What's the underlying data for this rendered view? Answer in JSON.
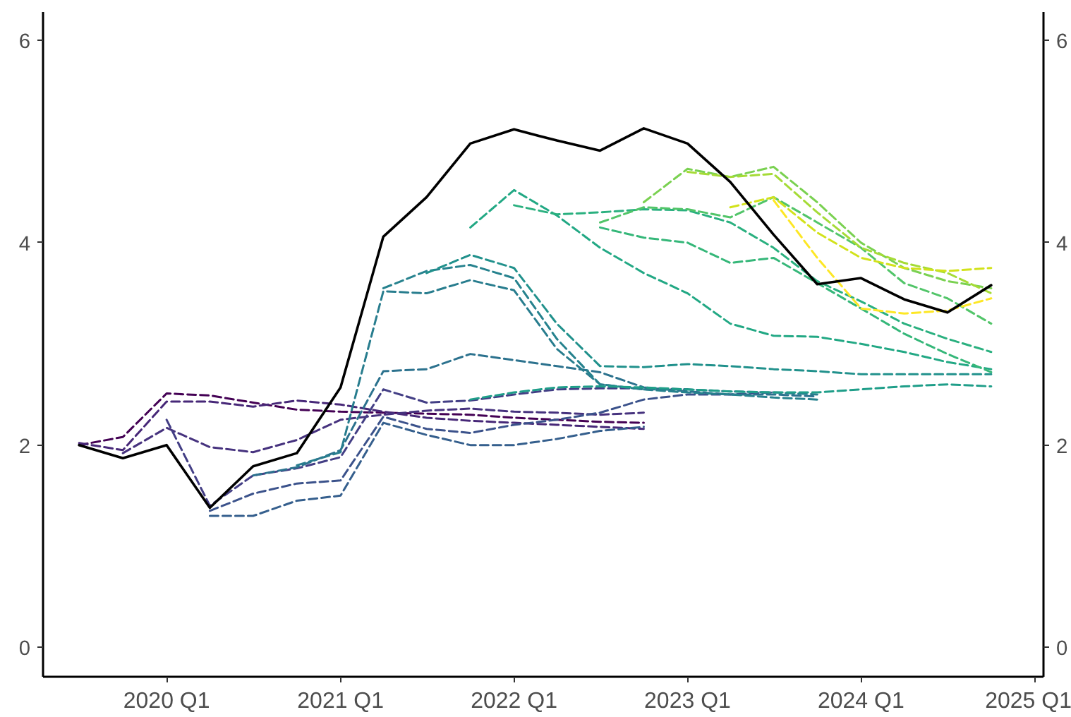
{
  "chart_data": {
    "type": "line",
    "xlim": [
      "2019-04-16",
      "2025-01-19"
    ],
    "ylim": [
      -0.29,
      6.28
    ],
    "y2lim": [
      -0.29,
      6.28
    ],
    "xticks": [
      {
        "value": "2020-01",
        "label": "2020 Q1"
      },
      {
        "value": "2021-01",
        "label": "2021 Q1"
      },
      {
        "value": "2022-01",
        "label": "2022 Q1"
      },
      {
        "value": "2023-01",
        "label": "2023 Q1"
      },
      {
        "value": "2024-01",
        "label": "2024 Q1"
      },
      {
        "value": "2025-01",
        "label": "2025 Q1"
      }
    ],
    "yticks": [
      0,
      2,
      4,
      6
    ],
    "y2ticks": [
      0,
      2,
      4,
      6
    ],
    "grid": false,
    "marker": "none",
    "series": [
      {
        "color": "#440154",
        "line_style": "dashed",
        "x": [
          "2019-07",
          "2019-10",
          "2020-01",
          "2020-04",
          "2020-07",
          "2020-10",
          "2021-01",
          "2021-04",
          "2021-07",
          "2021-10",
          "2022-01",
          "2022-04",
          "2022-07",
          "2022-10"
        ],
        "values": [
          2.0,
          2.08,
          2.51,
          2.49,
          2.42,
          2.35,
          2.33,
          2.32,
          2.31,
          2.3,
          2.27,
          2.25,
          2.23,
          2.22
        ]
      },
      {
        "color": "#472878",
        "line_style": "dashed",
        "x": [
          "2019-07",
          "2019-10",
          "2020-01",
          "2020-04",
          "2020-07",
          "2020-10",
          "2021-01",
          "2021-04",
          "2021-07",
          "2021-10",
          "2022-01",
          "2022-04",
          "2022-07",
          "2022-10"
        ],
        "values": [
          2.02,
          1.95,
          2.43,
          2.43,
          2.38,
          2.44,
          2.4,
          2.33,
          2.27,
          2.24,
          2.22,
          2.2,
          2.18,
          2.16
        ]
      },
      {
        "color": "#46327e",
        "line_style": "dashed",
        "x": [
          "2019-10",
          "2020-01",
          "2020-04",
          "2020-07",
          "2020-10",
          "2021-01",
          "2021-04",
          "2021-07",
          "2021-10",
          "2022-01",
          "2022-04",
          "2022-07",
          "2022-10"
        ],
        "values": [
          1.92,
          2.17,
          1.98,
          1.93,
          2.05,
          2.25,
          2.3,
          2.34,
          2.36,
          2.33,
          2.32,
          2.3,
          2.32
        ]
      },
      {
        "color": "#433e85",
        "line_style": "dashed",
        "x": [
          "2020-01",
          "2020-04",
          "2020-07",
          "2020-10",
          "2021-01",
          "2021-04",
          "2021-07",
          "2021-10",
          "2022-01",
          "2022-04",
          "2022-07",
          "2022-10",
          "2023-01"
        ],
        "values": [
          2.25,
          1.4,
          1.7,
          1.77,
          1.88,
          2.55,
          2.42,
          2.44,
          2.5,
          2.55,
          2.56,
          2.56,
          2.55
        ]
      },
      {
        "color": "#3b528b",
        "line_style": "dashed",
        "x": [
          "2020-04",
          "2020-07",
          "2020-10",
          "2021-01",
          "2021-04",
          "2021-07",
          "2021-10",
          "2022-01",
          "2022-04",
          "2022-07",
          "2022-10",
          "2023-01",
          "2023-04",
          "2023-07"
        ],
        "values": [
          1.35,
          1.52,
          1.62,
          1.65,
          2.28,
          2.16,
          2.12,
          2.2,
          2.25,
          2.32,
          2.45,
          2.5,
          2.5,
          2.52
        ]
      },
      {
        "color": "#355f8d",
        "line_style": "dashed",
        "x": [
          "2020-04",
          "2020-07",
          "2020-10",
          "2021-01",
          "2021-04",
          "2021-07",
          "2021-10",
          "2022-01",
          "2022-04",
          "2022-07",
          "2022-10"
        ],
        "values": [
          1.3,
          1.3,
          1.45,
          1.5,
          2.22,
          2.1,
          2.0,
          2.0,
          2.06,
          2.14,
          2.18
        ]
      },
      {
        "color": "#2c728e",
        "line_style": "dashed",
        "x": [
          "2020-07",
          "2020-10",
          "2021-01",
          "2021-04",
          "2021-07",
          "2021-10",
          "2022-01",
          "2022-04",
          "2022-07",
          "2022-10",
          "2023-01",
          "2023-04",
          "2023-07",
          "2023-10"
        ],
        "values": [
          1.7,
          1.78,
          1.95,
          2.73,
          2.75,
          2.9,
          2.84,
          2.78,
          2.72,
          2.57,
          2.53,
          2.5,
          2.5,
          2.48
        ]
      },
      {
        "color": "#287d8e",
        "line_style": "dashed",
        "x": [
          "2020-10",
          "2021-01",
          "2021-04",
          "2021-07",
          "2021-10",
          "2022-01",
          "2022-04",
          "2022-07",
          "2022-10",
          "2023-01",
          "2023-04",
          "2023-07",
          "2023-10"
        ],
        "values": [
          1.8,
          1.93,
          3.52,
          3.5,
          3.63,
          3.53,
          2.95,
          2.6,
          2.55,
          2.55,
          2.53,
          2.52,
          2.5
        ]
      },
      {
        "color": "#26828e",
        "line_style": "dashed",
        "x": [
          "2021-04",
          "2021-07",
          "2021-10",
          "2022-01",
          "2022-04",
          "2022-07",
          "2022-10",
          "2023-01",
          "2023-04",
          "2023-07",
          "2023-10"
        ],
        "values": [
          3.55,
          3.72,
          3.78,
          3.65,
          3.05,
          2.6,
          2.55,
          2.52,
          2.5,
          2.47,
          2.45
        ]
      },
      {
        "color": "#21918c",
        "line_style": "dashed",
        "x": [
          "2021-07",
          "2021-10",
          "2022-01",
          "2022-04",
          "2022-07",
          "2022-10",
          "2023-01",
          "2023-04",
          "2023-07",
          "2023-10",
          "2024-01",
          "2024-04",
          "2024-07",
          "2024-10"
        ],
        "values": [
          3.7,
          3.88,
          3.75,
          3.2,
          2.78,
          2.77,
          2.8,
          2.78,
          2.75,
          2.73,
          2.7,
          2.7,
          2.7,
          2.7
        ]
      },
      {
        "color": "#1f9e89",
        "line_style": "dashed",
        "x": [
          "2021-10",
          "2022-01",
          "2022-04",
          "2022-07",
          "2022-10",
          "2023-01",
          "2023-04",
          "2023-07",
          "2023-10",
          "2024-01",
          "2024-04",
          "2024-07",
          "2024-10"
        ],
        "values": [
          2.45,
          2.52,
          2.57,
          2.58,
          2.57,
          2.55,
          2.53,
          2.52,
          2.52,
          2.55,
          2.58,
          2.6,
          2.58
        ]
      },
      {
        "color": "#22a884",
        "line_style": "dashed",
        "x": [
          "2021-10",
          "2022-01",
          "2022-04",
          "2022-07",
          "2022-10",
          "2023-01",
          "2023-04",
          "2023-07",
          "2023-10",
          "2024-01",
          "2024-04",
          "2024-07",
          "2024-10"
        ],
        "values": [
          4.15,
          4.52,
          4.27,
          3.95,
          3.7,
          3.5,
          3.2,
          3.08,
          3.07,
          3.0,
          2.92,
          2.82,
          2.75
        ]
      },
      {
        "color": "#2ab07f",
        "line_style": "dashed",
        "x": [
          "2022-01",
          "2022-04",
          "2022-07",
          "2022-10",
          "2023-01",
          "2023-04",
          "2023-07",
          "2023-10",
          "2024-01",
          "2024-04",
          "2024-07",
          "2024-10"
        ],
        "values": [
          4.37,
          4.28,
          4.3,
          4.33,
          4.32,
          4.2,
          3.95,
          3.62,
          3.42,
          3.2,
          3.05,
          2.92
        ]
      },
      {
        "color": "#35b779",
        "line_style": "dashed",
        "x": [
          "2022-07",
          "2022-10",
          "2023-01",
          "2023-04",
          "2023-07",
          "2023-10",
          "2024-01",
          "2024-04",
          "2024-07",
          "2024-10"
        ],
        "values": [
          4.15,
          4.05,
          4.0,
          3.8,
          3.85,
          3.6,
          3.35,
          3.1,
          2.9,
          2.72
        ]
      },
      {
        "color": "#52c569",
        "line_style": "dashed",
        "x": [
          "2022-07",
          "2022-10",
          "2023-01",
          "2023-04",
          "2023-07",
          "2023-10",
          "2024-01",
          "2024-04",
          "2024-07",
          "2024-10"
        ],
        "values": [
          4.2,
          4.35,
          4.33,
          4.25,
          4.45,
          4.2,
          3.95,
          3.6,
          3.45,
          3.2
        ]
      },
      {
        "color": "#7ad151",
        "line_style": "dashed",
        "x": [
          "2022-10",
          "2023-01",
          "2023-04",
          "2023-07",
          "2023-10",
          "2024-01",
          "2024-04",
          "2024-07",
          "2024-10"
        ],
        "values": [
          4.4,
          4.73,
          4.65,
          4.75,
          4.4,
          4.0,
          3.75,
          3.62,
          3.55
        ]
      },
      {
        "color": "#a5db36",
        "line_style": "dashed",
        "x": [
          "2023-01",
          "2023-04",
          "2023-07",
          "2023-10",
          "2024-01",
          "2024-04",
          "2024-07",
          "2024-10"
        ],
        "values": [
          4.7,
          4.65,
          4.68,
          4.3,
          3.95,
          3.8,
          3.7,
          3.5
        ]
      },
      {
        "color": "#d2e21b",
        "line_style": "dashed",
        "x": [
          "2023-04",
          "2023-07",
          "2023-10",
          "2024-01",
          "2024-04",
          "2024-07",
          "2024-10"
        ],
        "values": [
          4.35,
          4.45,
          4.1,
          3.85,
          3.75,
          3.72,
          3.75
        ]
      },
      {
        "color": "#fde725",
        "line_style": "dashed",
        "x": [
          "2023-07",
          "2023-10",
          "2024-01",
          "2024-04",
          "2024-07",
          "2024-10"
        ],
        "values": [
          4.42,
          3.85,
          3.35,
          3.3,
          3.33,
          3.45
        ]
      },
      {
        "color": "#000000",
        "line_style": "solid",
        "x": [
          "2019-07",
          "2019-10",
          "2020-01",
          "2020-04",
          "2020-07",
          "2020-10",
          "2021-01",
          "2021-04",
          "2021-07",
          "2021-10",
          "2022-01",
          "2022-04",
          "2022-07",
          "2022-10",
          "2023-01",
          "2023-04",
          "2023-07",
          "2023-10",
          "2024-01",
          "2024-04",
          "2024-07",
          "2024-10"
        ],
        "values": [
          2.0,
          1.87,
          2.0,
          1.38,
          1.79,
          1.92,
          2.57,
          4.06,
          4.45,
          4.98,
          5.12,
          5.01,
          4.91,
          5.13,
          4.98,
          4.6,
          4.08,
          3.59,
          3.65,
          3.44,
          3.31,
          3.58
        ]
      }
    ]
  }
}
